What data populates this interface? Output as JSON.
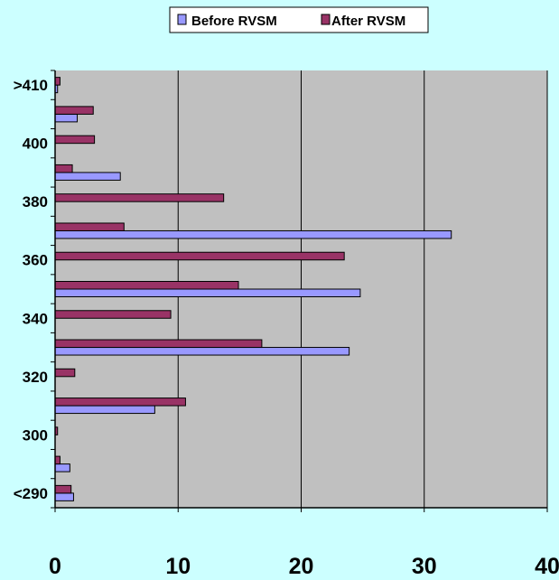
{
  "chart_data": {
    "type": "bar",
    "orientation": "horizontal",
    "categories": [
      "<290",
      "",
      "300",
      "",
      "320",
      "",
      "340",
      "",
      "360",
      "",
      "380",
      "",
      "400",
      "",
      ">410"
    ],
    "series": [
      {
        "name": "Before RVSM",
        "color": "#9999ff",
        "values": [
          1.5,
          1.2,
          0,
          8.1,
          0,
          23.9,
          0,
          24.8,
          0,
          32.2,
          0,
          5.3,
          0,
          1.8,
          0.2
        ]
      },
      {
        "name": "After RVSM",
        "color": "#993366",
        "values": [
          1.3,
          0.4,
          0.2,
          10.6,
          1.6,
          16.8,
          9.4,
          14.9,
          23.5,
          5.6,
          13.7,
          1.4,
          3.2,
          3.1,
          0.4
        ]
      }
    ],
    "xlim": [
      0,
      40
    ],
    "x_ticks": [
      "0",
      "10",
      "20",
      "30",
      "40"
    ],
    "y_tick_labels": [
      "<290",
      "300",
      "320",
      "340",
      "360",
      "380",
      "400",
      ">410"
    ],
    "gridlines": "vertical",
    "legend_position": "top",
    "plot_background": "#c0c0c0",
    "page_background": "#ccffff"
  }
}
